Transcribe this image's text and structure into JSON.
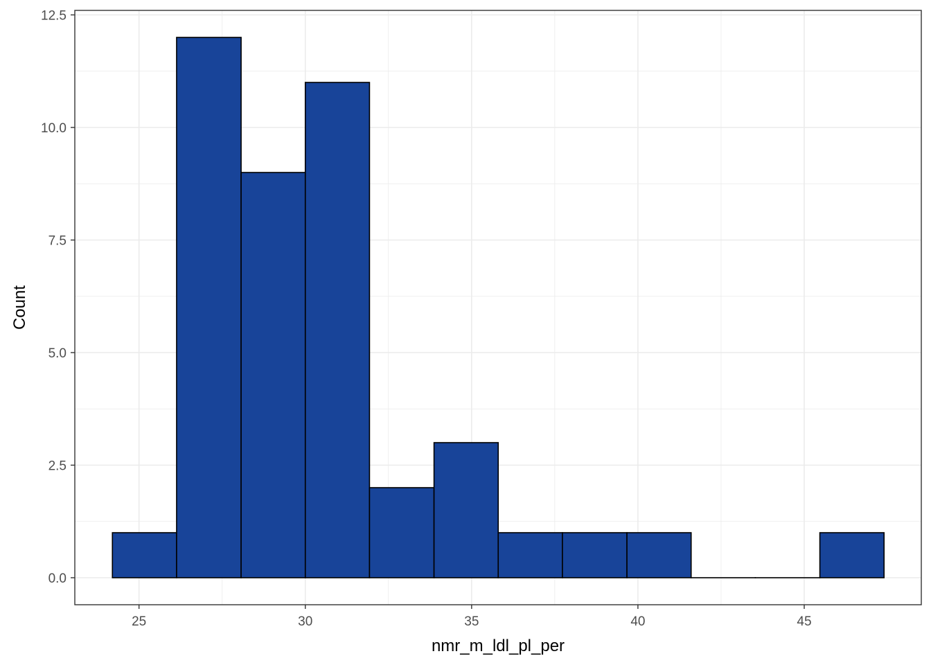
{
  "chart_data": {
    "type": "histogram",
    "xlabel": "nmr_m_ldl_pl_per",
    "ylabel": "Count",
    "xlim": [
      23.07,
      48.52
    ],
    "ylim": [
      -0.6,
      12.6
    ],
    "x_ticks": [
      25,
      30,
      35,
      40,
      45
    ],
    "x_tick_labels": [
      "25",
      "30",
      "35",
      "40",
      "45"
    ],
    "y_ticks": [
      0,
      2.5,
      5,
      7.5,
      10,
      12.5
    ],
    "y_tick_labels": [
      "0.0",
      "2.5",
      "5.0",
      "7.5",
      "10.0",
      "12.5"
    ],
    "bins": [
      {
        "x0": 24.2,
        "x1": 26.13,
        "count": 1
      },
      {
        "x0": 26.13,
        "x1": 28.07,
        "count": 12
      },
      {
        "x0": 28.07,
        "x1": 30.0,
        "count": 9
      },
      {
        "x0": 30.0,
        "x1": 31.93,
        "count": 11
      },
      {
        "x0": 31.93,
        "x1": 33.87,
        "count": 2
      },
      {
        "x0": 33.87,
        "x1": 35.8,
        "count": 3
      },
      {
        "x0": 35.8,
        "x1": 37.73,
        "count": 1
      },
      {
        "x0": 37.73,
        "x1": 39.67,
        "count": 1
      },
      {
        "x0": 39.67,
        "x1": 41.6,
        "count": 1
      },
      {
        "x0": 41.6,
        "x1": 43.53,
        "count": 0
      },
      {
        "x0": 43.53,
        "x1": 45.47,
        "count": 0
      },
      {
        "x0": 45.47,
        "x1": 47.4,
        "count": 1
      }
    ],
    "bar_fill": "#184499",
    "bar_stroke": "#000000",
    "grid": true,
    "grid_color": "#ebebeb",
    "panel_border_color": "#333333"
  }
}
